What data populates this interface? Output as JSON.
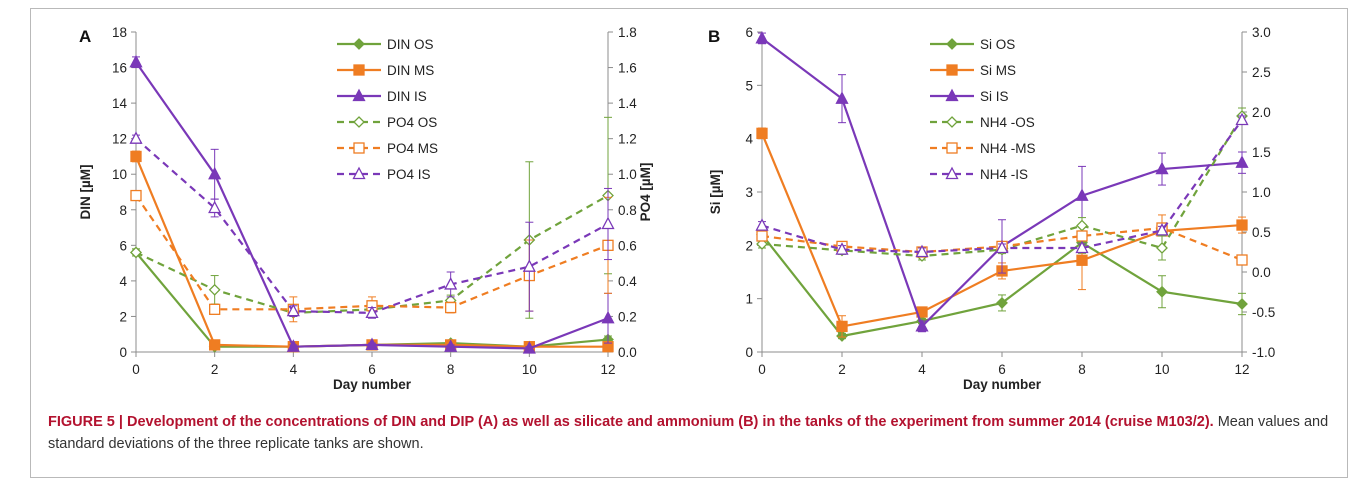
{
  "chart_data": [
    {
      "panel": "A",
      "type": "line",
      "x": [
        0,
        2,
        4,
        6,
        8,
        10,
        12
      ],
      "xlabel": "Day number",
      "xticks": [
        "0",
        "2",
        "4",
        "6",
        "8",
        "10",
        "12"
      ],
      "ylabel": "DIN [µM]",
      "ylim": [
        0,
        18
      ],
      "yticks": [
        "0",
        "2",
        "4",
        "6",
        "8",
        "10",
        "12",
        "14",
        "16",
        "18"
      ],
      "y2label": "PO4 [µM]",
      "y2lim": [
        0,
        1.8
      ],
      "y2ticks": [
        "0.0",
        "0.2",
        "0.4",
        "0.6",
        "0.8",
        "1.0",
        "1.2",
        "1.4",
        "1.6",
        "1.8"
      ],
      "grid": false,
      "legend": "top-center",
      "series": [
        {
          "name": "DIN OS",
          "axis": "left",
          "color": "#70a33c",
          "style": "solid",
          "marker": "diamond-filled",
          "values": [
            5.6,
            0.3,
            0.3,
            0.4,
            0.5,
            0.3,
            0.7
          ],
          "err": [
            0.2,
            0.1,
            0.1,
            0.1,
            0.1,
            0.1,
            0.2
          ]
        },
        {
          "name": "DIN MS",
          "axis": "left",
          "color": "#ef7d22",
          "style": "solid",
          "marker": "square-filled",
          "values": [
            11.0,
            0.4,
            0.3,
            0.4,
            0.4,
            0.3,
            0.3
          ],
          "err": [
            0.3,
            0.1,
            0.1,
            0.1,
            0.1,
            0.1,
            0.1
          ]
        },
        {
          "name": "DIN IS",
          "axis": "left",
          "color": "#7a38b8",
          "style": "solid",
          "marker": "triangle-filled",
          "values": [
            16.3,
            10.0,
            0.3,
            0.4,
            0.3,
            0.2,
            1.9
          ],
          "err": [
            0.3,
            1.4,
            0.1,
            0.1,
            0.1,
            0.1,
            1.4
          ]
        },
        {
          "name": "PO4 OS",
          "axis": "right",
          "color": "#70a33c",
          "style": "dashed",
          "marker": "diamond-open",
          "values": [
            0.56,
            0.35,
            0.22,
            0.24,
            0.29,
            0.63,
            0.88
          ],
          "err": [
            0.02,
            0.08,
            0.02,
            0.03,
            0.03,
            0.44,
            0.44
          ]
        },
        {
          "name": "PO4 MS",
          "axis": "right",
          "color": "#ef7d22",
          "style": "dashed",
          "marker": "square-open",
          "values": [
            0.88,
            0.24,
            0.24,
            0.26,
            0.25,
            0.43,
            0.6
          ],
          "err": [
            0.02,
            0.02,
            0.07,
            0.05,
            0.03,
            0.2,
            0.27
          ]
        },
        {
          "name": "PO4 IS",
          "axis": "right",
          "color": "#7a38b8",
          "style": "dashed",
          "marker": "triangle-open",
          "values": [
            1.2,
            0.81,
            0.23,
            0.22,
            0.38,
            0.48,
            0.72
          ],
          "err": [
            0.02,
            0.05,
            0.03,
            0.03,
            0.07,
            0.25,
            0.2
          ]
        }
      ]
    },
    {
      "panel": "B",
      "type": "line",
      "x": [
        0,
        2,
        4,
        6,
        8,
        10,
        12
      ],
      "xlabel": "Day number",
      "xticks": [
        "0",
        "2",
        "4",
        "6",
        "8",
        "10",
        "12"
      ],
      "ylabel": "Si [µM]",
      "ylim": [
        0,
        6
      ],
      "yticks": [
        "0",
        "1",
        "2",
        "3",
        "4",
        "5",
        "6"
      ],
      "y2label": "",
      "y2lim": [
        -1,
        3
      ],
      "y2ticks": [
        "-1.0",
        "-0.5",
        "0.0",
        "0.5",
        "1.0",
        "1.5",
        "2.0",
        "2.5",
        "3.0"
      ],
      "grid": false,
      "legend": "top-center",
      "series": [
        {
          "name": "Si OS",
          "axis": "left",
          "color": "#70a33c",
          "style": "solid",
          "marker": "diamond-filled",
          "values": [
            2.2,
            0.3,
            0.58,
            0.92,
            2.05,
            1.13,
            0.9
          ],
          "err": [
            0.1,
            0.05,
            0.05,
            0.15,
            0.2,
            0.3,
            0.2
          ]
        },
        {
          "name": "Si MS",
          "axis": "left",
          "color": "#ef7d22",
          "style": "solid",
          "marker": "square-filled",
          "values": [
            4.1,
            0.48,
            0.75,
            1.52,
            1.72,
            2.27,
            2.38
          ],
          "err": [
            0.1,
            0.2,
            0.05,
            0.15,
            0.55,
            0.3,
            0.15
          ]
        },
        {
          "name": "Si IS",
          "axis": "left",
          "color": "#7a38b8",
          "style": "solid",
          "marker": "triangle-filled",
          "values": [
            5.88,
            4.75,
            0.48,
            1.98,
            2.93,
            3.43,
            3.55
          ],
          "err": [
            0.1,
            0.45,
            0.1,
            0.5,
            0.55,
            0.3,
            0.2
          ]
        },
        {
          "name": "NH4 -OS",
          "axis": "right",
          "color": "#70a33c",
          "style": "dashed",
          "marker": "diamond-open",
          "values": [
            0.35,
            0.27,
            0.2,
            0.28,
            0.58,
            0.3,
            1.95
          ],
          "err": [
            0.05,
            0.05,
            0.05,
            0.05,
            0.1,
            0.15,
            0.1
          ]
        },
        {
          "name": "NH4 -MS",
          "axis": "right",
          "color": "#ef7d22",
          "style": "dashed",
          "marker": "square-open",
          "values": [
            0.45,
            0.32,
            0.25,
            0.32,
            0.45,
            0.55,
            0.15
          ],
          "err": [
            0.05,
            0.05,
            0.05,
            0.05,
            0.05,
            0.05,
            0.05
          ]
        },
        {
          "name": "NH4 -IS",
          "axis": "right",
          "color": "#7a38b8",
          "style": "dashed",
          "marker": "triangle-open",
          "values": [
            0.58,
            0.28,
            0.25,
            0.3,
            0.3,
            0.52,
            1.9
          ],
          "err": [
            0.05,
            0.05,
            0.05,
            0.05,
            0.05,
            0.05,
            0.05
          ]
        }
      ]
    }
  ],
  "caption": {
    "bold": "FIGURE 5 | Development of the concentrations of DIN and DIP (A) as well as silicate and ammonium (B) in the tanks of the experiment from summer 2014 (cruise M103/2).",
    "rest": " Mean values and standard deviations of the three replicate tanks are shown."
  }
}
